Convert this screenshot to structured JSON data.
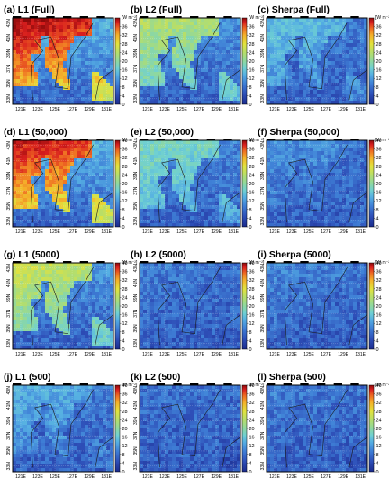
{
  "figure": {
    "panels": [
      {
        "label": "(a) L1 (Full)",
        "model": "L1",
        "samples": "Full",
        "intensity": 1.0
      },
      {
        "label": "(b) L2 (Full)",
        "model": "L2",
        "samples": "Full",
        "intensity": 0.55
      },
      {
        "label": "(c) Sherpa (Full)",
        "model": "Sherpa",
        "samples": "Full",
        "intensity": 0.32
      },
      {
        "label": "(d) L1 (50,000)",
        "model": "L1",
        "samples": "50,000",
        "intensity": 0.95
      },
      {
        "label": "(e) L2 (50,000)",
        "model": "L2",
        "samples": "50,000",
        "intensity": 0.42
      },
      {
        "label": "(f) Sherpa (50,000)",
        "model": "Sherpa",
        "samples": "50,000",
        "intensity": 0.22
      },
      {
        "label": "(g) L1 (5000)",
        "model": "L1",
        "samples": "5000",
        "intensity": 0.6
      },
      {
        "label": "(h) L2 (5000)",
        "model": "L2",
        "samples": "5000",
        "intensity": 0.18
      },
      {
        "label": "(i) Sherpa (5000)",
        "model": "Sherpa",
        "samples": "5000",
        "intensity": 0.2
      },
      {
        "label": "(j) L1 (500)",
        "model": "L1",
        "samples": "500",
        "intensity": 0.28
      },
      {
        "label": "(k) L2 (500)",
        "model": "L2",
        "samples": "500",
        "intensity": 0.16
      },
      {
        "label": "(l) Sherpa (500)",
        "model": "Sherpa",
        "samples": "500",
        "intensity": 0.18
      }
    ],
    "x_ticks": [
      "121E",
      "123E",
      "125E",
      "127E",
      "129E",
      "131E"
    ],
    "y_ticks": [
      "43N",
      "41N",
      "39N",
      "37N",
      "35N",
      "33N"
    ],
    "colorbar": {
      "unit": "[W m⁻²]",
      "ticks_full": [
        "40",
        "36",
        "32",
        "28",
        "24",
        "20",
        "16",
        "12",
        "8",
        "4",
        "0"
      ],
      "ticks_row1": [
        "36",
        "32",
        "28",
        "24",
        "20",
        "16",
        "12",
        "8",
        "4",
        "0"
      ],
      "colors": [
        "#1a2a8c",
        "#2e4fb8",
        "#3f7fd6",
        "#55aee3",
        "#6fd0d2",
        "#8ed8a0",
        "#b6de6a",
        "#e2e23d",
        "#f4b02a",
        "#ee6a22",
        "#d81e1e",
        "#8c0b0b"
      ],
      "range": [
        0,
        40
      ]
    }
  }
}
